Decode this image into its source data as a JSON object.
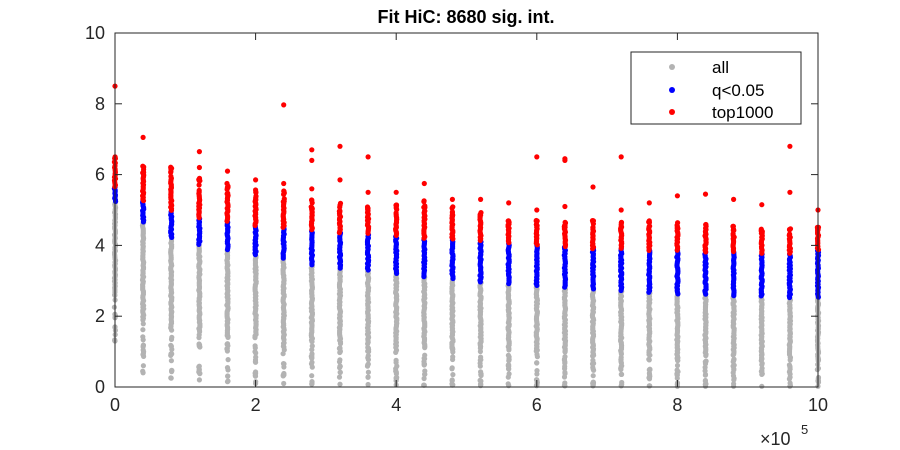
{
  "chart_data": {
    "type": "scatter",
    "title": "Fit HiC: 8680 sig. int.",
    "xlabel": "",
    "ylabel": "",
    "xlim": [
      0,
      1000000
    ],
    "ylim": [
      0,
      10
    ],
    "x_ticks": [
      0,
      200000,
      400000,
      600000,
      800000,
      1000000
    ],
    "x_tick_labels": [
      "0",
      "2",
      "4",
      "6",
      "8",
      "10"
    ],
    "x_exponent_label": "×10",
    "x_exponent_power": "5",
    "y_ticks": [
      0,
      2,
      4,
      6,
      8,
      10
    ],
    "y_tick_labels": [
      "0",
      "2",
      "4",
      "6",
      "8",
      "10"
    ],
    "grid": false,
    "legend_position": "top-right",
    "series": [
      {
        "name": "all",
        "color": "#b3b3b3"
      },
      {
        "name": "q<0.05",
        "color": "#0000ff"
      },
      {
        "name": "top1000",
        "color": "#ff0000"
      }
    ],
    "bins": [
      {
        "x": 0,
        "all": [
          1.3,
          5.2
        ],
        "q": [
          5.2,
          5.65
        ],
        "top": [
          5.65,
          6.5
        ],
        "extra_all": [],
        "extra_top": [
          8.5
        ]
      },
      {
        "x": 40000,
        "all": [
          0.4,
          4.65
        ],
        "q": [
          4.65,
          5.25
        ],
        "top": [
          5.25,
          6.3
        ],
        "extra_all": [],
        "extra_top": [
          7.05
        ]
      },
      {
        "x": 80000,
        "all": [
          0.25,
          4.2
        ],
        "q": [
          4.2,
          4.95
        ],
        "top": [
          4.95,
          6.3
        ],
        "extra_all": [],
        "extra_top": []
      },
      {
        "x": 120000,
        "all": [
          0.2,
          4.0
        ],
        "q": [
          4.0,
          4.75
        ],
        "top": [
          4.75,
          5.9
        ],
        "extra_all": [],
        "extra_top": [
          6.2,
          6.65
        ]
      },
      {
        "x": 160000,
        "all": [
          0.15,
          3.85
        ],
        "q": [
          3.85,
          4.65
        ],
        "top": [
          4.65,
          5.8
        ],
        "extra_all": [],
        "extra_top": [
          6.1
        ]
      },
      {
        "x": 200000,
        "all": [
          0.1,
          3.7
        ],
        "q": [
          3.7,
          4.55
        ],
        "top": [
          4.55,
          5.6
        ],
        "extra_all": [],
        "extra_top": [
          5.85
        ]
      },
      {
        "x": 240000,
        "all": [
          0.1,
          3.6
        ],
        "q": [
          3.6,
          4.5
        ],
        "top": [
          4.5,
          5.55
        ],
        "extra_all": [],
        "extra_top": [
          7.97,
          5.75
        ]
      },
      {
        "x": 280000,
        "all": [
          0.08,
          3.45
        ],
        "q": [
          3.45,
          4.4
        ],
        "top": [
          4.4,
          5.3
        ],
        "extra_all": [],
        "extra_top": [
          6.7,
          6.4,
          5.6
        ]
      },
      {
        "x": 320000,
        "all": [
          0.08,
          3.35
        ],
        "q": [
          3.35,
          4.35
        ],
        "top": [
          4.35,
          5.2
        ],
        "extra_all": [],
        "extra_top": [
          6.8,
          5.85
        ]
      },
      {
        "x": 360000,
        "all": [
          0.07,
          3.3
        ],
        "q": [
          3.3,
          4.3
        ],
        "top": [
          4.3,
          5.2
        ],
        "extra_all": [],
        "extra_top": [
          6.5,
          5.5
        ]
      },
      {
        "x": 400000,
        "all": [
          0.06,
          3.2
        ],
        "q": [
          3.2,
          4.25
        ],
        "top": [
          4.25,
          5.2
        ],
        "extra_all": [],
        "extra_top": [
          5.5
        ]
      },
      {
        "x": 440000,
        "all": [
          0.05,
          3.1
        ],
        "q": [
          3.1,
          4.2
        ],
        "top": [
          4.2,
          5.3
        ],
        "extra_all": [],
        "extra_top": [
          5.75
        ]
      },
      {
        "x": 480000,
        "all": [
          0.05,
          3.05
        ],
        "q": [
          3.05,
          4.15
        ],
        "top": [
          4.15,
          5.1
        ],
        "extra_all": [],
        "extra_top": [
          5.3
        ]
      },
      {
        "x": 520000,
        "all": [
          0.04,
          2.95
        ],
        "q": [
          2.95,
          4.1
        ],
        "top": [
          4.1,
          5.0
        ],
        "extra_all": [],
        "extra_top": [
          5.3
        ]
      },
      {
        "x": 560000,
        "all": [
          0.04,
          2.9
        ],
        "q": [
          2.9,
          4.05
        ],
        "top": [
          4.05,
          4.8
        ],
        "extra_all": [],
        "extra_top": [
          5.2
        ]
      },
      {
        "x": 600000,
        "all": [
          0.04,
          2.85
        ],
        "q": [
          2.85,
          4.0
        ],
        "top": [
          4.0,
          4.8
        ],
        "extra_all": [],
        "extra_top": [
          6.5,
          5.0
        ]
      },
      {
        "x": 640000,
        "all": [
          0.03,
          2.8
        ],
        "q": [
          2.8,
          3.95
        ],
        "top": [
          3.95,
          4.75
        ],
        "extra_all": [],
        "extra_top": [
          6.45,
          6.4,
          5.1
        ]
      },
      {
        "x": 680000,
        "all": [
          0.03,
          2.75
        ],
        "q": [
          2.75,
          3.9
        ],
        "top": [
          3.9,
          4.75
        ],
        "extra_all": [],
        "extra_top": [
          5.65
        ]
      },
      {
        "x": 720000,
        "all": [
          0.03,
          2.7
        ],
        "q": [
          2.7,
          3.9
        ],
        "top": [
          3.9,
          4.7
        ],
        "extra_all": [],
        "extra_top": [
          6.5,
          5.0
        ]
      },
      {
        "x": 760000,
        "all": [
          0.03,
          2.65
        ],
        "q": [
          2.65,
          3.85
        ],
        "top": [
          3.85,
          4.7
        ],
        "extra_all": [],
        "extra_top": [
          5.2
        ]
      },
      {
        "x": 800000,
        "all": [
          0.02,
          2.6
        ],
        "q": [
          2.6,
          3.85
        ],
        "top": [
          3.85,
          4.65
        ],
        "extra_all": [],
        "extra_top": [
          5.4
        ]
      },
      {
        "x": 840000,
        "all": [
          0.02,
          2.6
        ],
        "q": [
          2.6,
          3.8
        ],
        "top": [
          3.8,
          4.6
        ],
        "extra_all": [],
        "extra_top": [
          5.45
        ]
      },
      {
        "x": 880000,
        "all": [
          0.02,
          2.55
        ],
        "q": [
          2.55,
          3.8
        ],
        "top": [
          3.8,
          4.55
        ],
        "extra_all": [],
        "extra_top": [
          5.3
        ]
      },
      {
        "x": 920000,
        "all": [
          0.02,
          2.55
        ],
        "q": [
          2.55,
          3.75
        ],
        "top": [
          3.75,
          4.5
        ],
        "extra_all": [],
        "extra_top": [
          5.15
        ]
      },
      {
        "x": 960000,
        "all": [
          0.02,
          2.5
        ],
        "q": [
          2.5,
          3.75
        ],
        "top": [
          3.75,
          4.5
        ],
        "extra_all": [],
        "extra_top": [
          6.8,
          5.5
        ]
      },
      {
        "x": 1000000,
        "all": [
          0.02,
          2.5
        ],
        "q": [
          2.5,
          3.85
        ],
        "top": [
          3.85,
          4.6
        ],
        "extra_all": [],
        "extra_top": [
          5.0
        ]
      }
    ]
  }
}
